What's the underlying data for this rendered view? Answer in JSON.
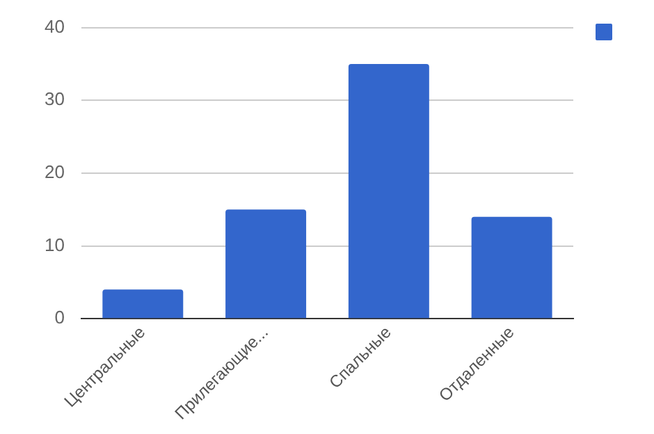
{
  "chart_data": {
    "type": "bar",
    "categories": [
      "Центральные",
      "Прилегающие...",
      "Спальные",
      "Отдаленные"
    ],
    "series": [
      {
        "color": "#3366cc",
        "values": [
          4,
          15,
          35,
          14
        ]
      }
    ],
    "ylim": [
      0,
      40
    ],
    "yticks": [
      0,
      10,
      20,
      30,
      40
    ],
    "grid": "y"
  }
}
